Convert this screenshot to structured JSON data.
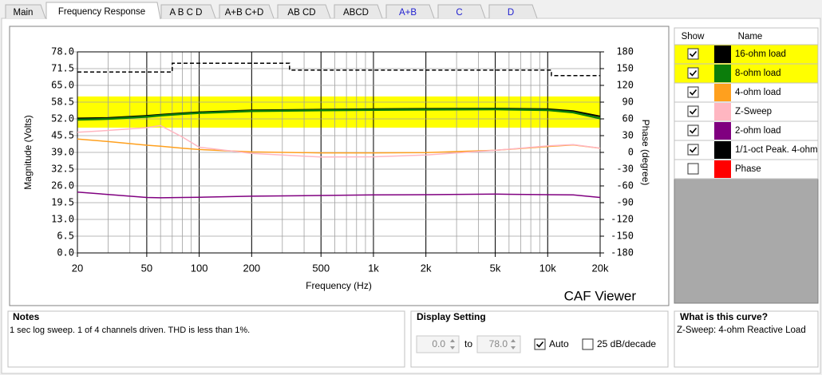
{
  "tabs": [
    {
      "label": "Main",
      "color": "#000000"
    },
    {
      "label": "Frequency Response",
      "color": "#000000"
    },
    {
      "label": "A B C D",
      "color": "#000000"
    },
    {
      "label": "A+B C+D",
      "color": "#000000"
    },
    {
      "label": "AB CD",
      "color": "#000000"
    },
    {
      "label": "ABCD",
      "color": "#000000"
    },
    {
      "label": "A+B",
      "color": "#2020d0"
    },
    {
      "label": "C",
      "color": "#2020d0"
    },
    {
      "label": "D",
      "color": "#2020d0"
    }
  ],
  "active_tab": 1,
  "chart_data": {
    "type": "line",
    "xlabel": "Frequency (Hz)",
    "ylabel": "Magnitude (Volts)",
    "y2label": "Phase (degree)",
    "annotation": "CAF Viewer",
    "log_x": true,
    "xlim": [
      20,
      20000
    ],
    "xticks": [
      20,
      50,
      100,
      200,
      500,
      {
        "value": 1000,
        "label": "1k"
      },
      {
        "value": 2000,
        "label": "2k"
      },
      {
        "value": 5000,
        "label": "5k"
      },
      {
        "value": 10000,
        "label": "10k"
      },
      {
        "value": 20000,
        "label": "20k"
      }
    ],
    "ylim": [
      0,
      78
    ],
    "yticks": [
      {
        "value": 0,
        "label": "0.0"
      },
      6.5,
      {
        "value": 13,
        "label": "13.0"
      },
      19.5,
      {
        "value": 26,
        "label": "26.0"
      },
      32.5,
      {
        "value": 39,
        "label": "39.0"
      },
      45.5,
      {
        "value": 52,
        "label": "52.0"
      },
      58.5,
      {
        "value": 65,
        "label": "65.0"
      },
      71.5,
      {
        "value": 78,
        "label": "78.0"
      }
    ],
    "y2lim": [
      -180,
      180
    ],
    "y2ticks": [
      -180,
      -150,
      -120,
      -90,
      -60,
      -30,
      0,
      30,
      60,
      90,
      120,
      150,
      180
    ],
    "grid": true,
    "band": {
      "range": [
        48.6,
        60.7
      ],
      "color": "#ffff00"
    },
    "x": [
      20,
      30,
      50,
      60,
      80,
      100,
      200,
      500,
      1000,
      2000,
      5000,
      10000,
      14000,
      20000
    ],
    "series": [
      {
        "name": "16-ohm load",
        "color": "#000000",
        "show": true,
        "highlight": true,
        "width": 2,
        "values": [
          52.2,
          52.4,
          53.2,
          53.6,
          54.2,
          54.6,
          55.3,
          55.6,
          55.8,
          55.9,
          56.0,
          55.8,
          55.0,
          53.0
        ]
      },
      {
        "name": "8-ohm load",
        "color": "#0b7d0b",
        "show": true,
        "highlight": true,
        "width": 2.5,
        "values": [
          51.7,
          52.0,
          52.8,
          53.3,
          53.9,
          54.3,
          55.0,
          55.3,
          55.5,
          55.6,
          55.7,
          55.4,
          54.5,
          52.2
        ]
      },
      {
        "name": "4-ohm load",
        "color": "#ffa01e",
        "show": true,
        "highlight": false,
        "width": 1.5,
        "values": [
          44.2,
          43.2,
          41.8,
          41.4,
          40.6,
          40.1,
          39.2,
          38.8,
          38.8,
          38.9,
          39.8,
          41.3,
          41.9,
          40.6
        ]
      },
      {
        "name": "Z-Sweep",
        "color": "#ffb6c1",
        "show": true,
        "highlight": false,
        "width": 1.5,
        "values": [
          46.8,
          47.5,
          48.6,
          49.4,
          45.0,
          41.0,
          38.6,
          37.2,
          37.3,
          38.0,
          39.8,
          41.5,
          42.0,
          40.6
        ]
      },
      {
        "name": "2-ohm load",
        "color": "#800080",
        "show": true,
        "highlight": false,
        "width": 1.5,
        "values": [
          23.6,
          22.7,
          21.5,
          21.4,
          21.5,
          21.6,
          22.0,
          22.3,
          22.5,
          22.6,
          22.8,
          22.6,
          22.5,
          21.5
        ]
      },
      {
        "name": "1/1-oct Peak. 4-ohm",
        "color": "#000000",
        "show": true,
        "highlight": false,
        "width": 1.5,
        "dashed": true,
        "x": [
          20,
          70,
          70,
          330,
          330,
          10500,
          10500,
          20000
        ],
        "values": [
          70.2,
          70.2,
          73.6,
          73.6,
          70.9,
          70.9,
          68.8,
          68.8
        ]
      },
      {
        "name": "Phase",
        "color": "#ff0000",
        "show": false,
        "highlight": false
      }
    ]
  },
  "legend_header": {
    "show": "Show",
    "name": "Name"
  },
  "notes": {
    "title": "Notes",
    "text": "1 sec log sweep. 1 of 4 channels driven. THD is less than 1%."
  },
  "display_setting": {
    "title": "Display Setting",
    "from": "0.0",
    "to_label": "to",
    "to": "78.0",
    "auto_label": "Auto",
    "auto": true,
    "db_label": "25 dB/decade",
    "db": false
  },
  "curve_info": {
    "title": "What is this curve?",
    "text": "Z-Sweep: 4-ohm Reactive Load"
  }
}
